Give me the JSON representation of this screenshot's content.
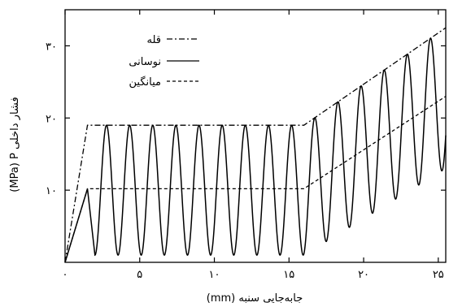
{
  "chart_data": {
    "type": "line",
    "xlabel": "(mm) جابه‌جایی سنبه",
    "ylabel": "(MPa) P فشار داخلی",
    "xlim": [
      0,
      25.5
    ],
    "ylim": [
      0,
      35
    ],
    "x_ticks": [
      {
        "value": 0,
        "label": "۰"
      },
      {
        "value": 5,
        "label": "۵"
      },
      {
        "value": 10,
        "label": "۱۰"
      },
      {
        "value": 15,
        "label": "۱۵"
      },
      {
        "value": 20,
        "label": "۲۰"
      },
      {
        "value": 25,
        "label": "۲۵"
      }
    ],
    "y_ticks": [
      {
        "value": 10,
        "label": "۱۰"
      },
      {
        "value": 20,
        "label": "۲۰"
      },
      {
        "value": 30,
        "label": "۳۰"
      }
    ],
    "series": [
      {
        "name": "قله",
        "style": "dashdot",
        "x": [
          0,
          1.5,
          16,
          25.5
        ],
        "y": [
          0,
          19,
          19,
          32.5
        ]
      },
      {
        "name": "نوسانی",
        "style": "solid",
        "oscillation": {
          "start_x": 2,
          "plateau_end_x": 16,
          "period": 1.55,
          "trough_y": 1,
          "peak_y": 19,
          "peak_end_y": 32.5,
          "trough_end_y": 13
        },
        "ramp": {
          "x": [
            0,
            1.5
          ],
          "y": [
            0,
            10.2
          ]
        }
      },
      {
        "name": "میانگین",
        "style": "dashed",
        "x": [
          0,
          1.5,
          16,
          25.5
        ],
        "y": [
          0,
          10.2,
          10.2,
          23
        ]
      }
    ],
    "legend_position": "top-left",
    "grid": false
  }
}
